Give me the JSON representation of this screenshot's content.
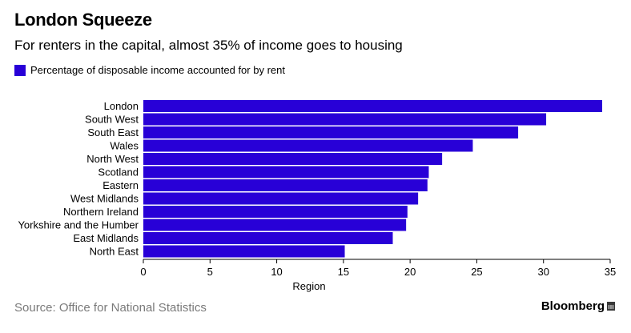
{
  "header": {
    "title": "London Squeeze",
    "subtitle": "For renters in the capital, almost 35% of income goes to housing"
  },
  "footer": {
    "source": "Source: Office for National Statistics",
    "brand": "Bloomberg"
  },
  "colors": {
    "bar": "#2800d7",
    "axis": "#000000",
    "source_text": "#7a7a7a"
  },
  "chart_data": {
    "type": "bar",
    "orientation": "horizontal",
    "categories": [
      "London",
      "South West",
      "South East",
      "Wales",
      "North West",
      "Scotland",
      "Eastern",
      "West Midlands",
      "Northern Ireland",
      "Yorkshire and the Humber",
      "East Midlands",
      "North East"
    ],
    "series": [
      {
        "name": "Percentage of disposable income accounted for by rent",
        "values": [
          34.4,
          30.2,
          28.1,
          24.7,
          22.4,
          21.4,
          21.3,
          20.6,
          19.8,
          19.7,
          18.7,
          15.1
        ]
      }
    ],
    "xlabel": "Region",
    "xlim": [
      0,
      35
    ],
    "xticks": [
      0,
      5,
      10,
      15,
      20,
      25,
      30,
      35
    ],
    "grid": false,
    "legend_position": "top-left"
  }
}
